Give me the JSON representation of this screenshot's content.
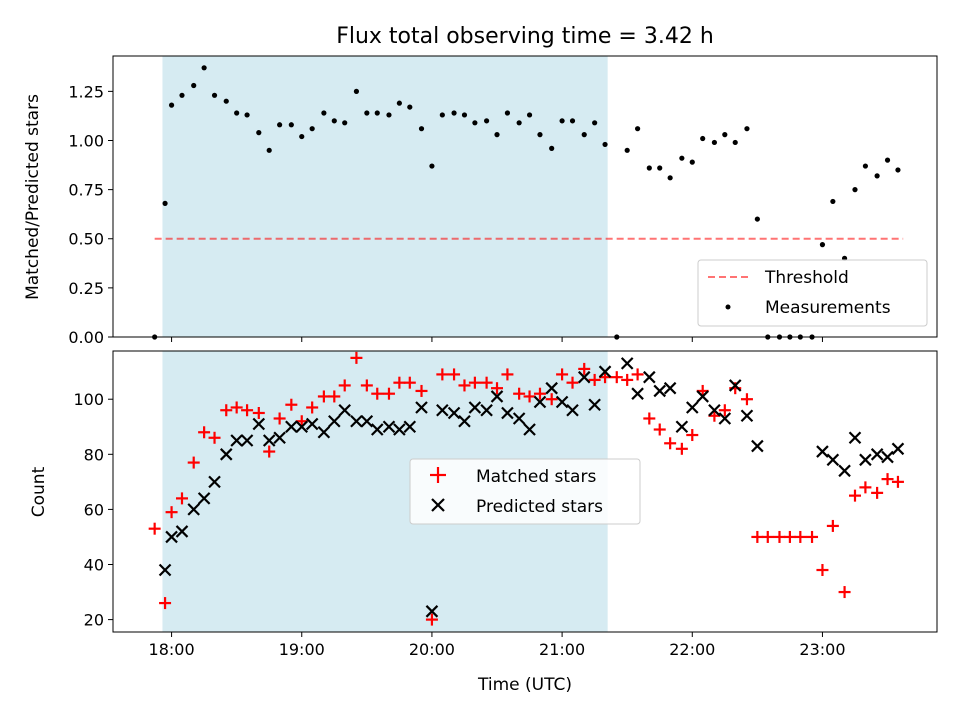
{
  "chart_data": {
    "title": "Flux total observing time = 3.42 h",
    "xlabel": "Time (UTC)",
    "xlim": [
      17.55,
      23.88
    ],
    "xticks": [
      18,
      19,
      20,
      21,
      22,
      23
    ],
    "xtick_labels": [
      "18:00",
      "19:00",
      "20:00",
      "21:00",
      "22:00",
      "23:00"
    ],
    "shaded_region": {
      "x_start": 17.93,
      "x_end": 21.35,
      "color": "#add8e6"
    },
    "panels": [
      {
        "type": "scatter",
        "ylabel": "Matched/Predicted stars",
        "ylim": [
          0.0,
          1.43
        ],
        "yticks": [
          0.0,
          0.25,
          0.5,
          0.75,
          1.0,
          1.25
        ],
        "ytick_labels": [
          "0.00",
          "0.25",
          "0.50",
          "0.75",
          "1.00",
          "1.25"
        ],
        "legend_position": "lower-right",
        "threshold": {
          "name": "Threshold",
          "y": 0.5,
          "x_range": [
            17.87,
            23.62
          ],
          "color": "#ff0000",
          "style": "dashed"
        },
        "measurements": {
          "name": "Measurements",
          "color": "#000000",
          "x": [
            17.87,
            17.95,
            18.0,
            18.08,
            18.17,
            18.25,
            18.33,
            18.42,
            18.5,
            18.58,
            18.67,
            18.75,
            18.83,
            18.92,
            19.0,
            19.08,
            19.17,
            19.25,
            19.33,
            19.42,
            19.5,
            19.58,
            19.67,
            19.75,
            19.83,
            19.92,
            20.0,
            20.08,
            20.17,
            20.25,
            20.33,
            20.42,
            20.5,
            20.58,
            20.67,
            20.75,
            20.83,
            20.92,
            21.0,
            21.08,
            21.17,
            21.25,
            21.33,
            21.42,
            21.5,
            21.58,
            21.67,
            21.75,
            21.83,
            21.92,
            22.0,
            22.08,
            22.17,
            22.25,
            22.33,
            22.42,
            22.5,
            22.58,
            22.67,
            22.75,
            22.83,
            22.92,
            23.0,
            23.08,
            23.17,
            23.25,
            23.33,
            23.42,
            23.5,
            23.58
          ],
          "y": [
            0.0,
            0.68,
            1.18,
            1.23,
            1.28,
            1.37,
            1.23,
            1.2,
            1.14,
            1.13,
            1.04,
            0.95,
            1.08,
            1.08,
            1.02,
            1.06,
            1.14,
            1.1,
            1.09,
            1.25,
            1.14,
            1.14,
            1.13,
            1.19,
            1.17,
            1.06,
            0.87,
            1.13,
            1.14,
            1.13,
            1.09,
            1.1,
            1.03,
            1.14,
            1.09,
            1.13,
            1.03,
            0.96,
            1.1,
            1.1,
            1.03,
            1.09,
            0.98,
            0.0,
            0.95,
            1.06,
            0.86,
            0.86,
            0.81,
            0.91,
            0.89,
            1.01,
            0.99,
            1.03,
            0.99,
            1.06,
            0.6,
            0.0,
            0.0,
            0.0,
            0.0,
            0.0,
            0.47,
            0.69,
            0.4,
            0.75,
            0.87,
            0.82,
            0.9,
            0.85
          ]
        }
      },
      {
        "type": "scatter",
        "ylabel": "Count",
        "ylim": [
          15.5,
          117.5
        ],
        "yticks": [
          20,
          40,
          60,
          80,
          100
        ],
        "ytick_labels": [
          "20",
          "40",
          "60",
          "80",
          "100"
        ],
        "legend_position": "center",
        "series": [
          {
            "name": "Matched stars",
            "marker": "plus",
            "color": "#ff0000",
            "x": [
              17.87,
              17.95,
              18.0,
              18.08,
              18.17,
              18.25,
              18.33,
              18.42,
              18.5,
              18.58,
              18.67,
              18.75,
              18.83,
              18.92,
              19.0,
              19.08,
              19.17,
              19.25,
              19.33,
              19.42,
              19.5,
              19.58,
              19.67,
              19.75,
              19.83,
              19.92,
              20.0,
              20.08,
              20.17,
              20.25,
              20.33,
              20.42,
              20.5,
              20.58,
              20.67,
              20.75,
              20.83,
              20.92,
              21.0,
              21.08,
              21.17,
              21.25,
              21.33,
              21.42,
              21.5,
              21.58,
              21.67,
              21.75,
              21.83,
              21.92,
              22.0,
              22.08,
              22.17,
              22.25,
              22.33,
              22.42,
              22.5,
              22.58,
              22.67,
              22.75,
              22.83,
              22.92,
              23.0,
              23.08,
              23.17,
              23.25,
              23.33,
              23.42,
              23.5,
              23.58
            ],
            "y": [
              53,
              26,
              59,
              64,
              77,
              88,
              86,
              96,
              97,
              96,
              95,
              81,
              93,
              98,
              92,
              97,
              101,
              101,
              105,
              115,
              105,
              102,
              102,
              106,
              106,
              103,
              20,
              109,
              109,
              105,
              106,
              106,
              104,
              109,
              102,
              101,
              102,
              100,
              109,
              106,
              111,
              107,
              108,
              108,
              107,
              109,
              93,
              89,
              84,
              82,
              87,
              103,
              94,
              96,
              104,
              100,
              50,
              50,
              50,
              50,
              50,
              50,
              38,
              54,
              30,
              65,
              68,
              66,
              71,
              70
            ]
          },
          {
            "name": "Predicted stars",
            "marker": "x",
            "color": "#000000",
            "x": [
              17.95,
              18.0,
              18.08,
              18.17,
              18.25,
              18.33,
              18.42,
              18.5,
              18.58,
              18.67,
              18.75,
              18.83,
              18.92,
              19.0,
              19.08,
              19.17,
              19.25,
              19.33,
              19.42,
              19.5,
              19.58,
              19.67,
              19.75,
              19.83,
              19.92,
              20.0,
              20.08,
              20.17,
              20.25,
              20.33,
              20.42,
              20.5,
              20.58,
              20.67,
              20.75,
              20.83,
              20.92,
              21.0,
              21.08,
              21.17,
              21.25,
              21.33,
              21.5,
              21.58,
              21.67,
              21.75,
              21.83,
              21.92,
              22.0,
              22.08,
              22.17,
              22.25,
              22.33,
              22.42,
              22.5,
              23.0,
              23.08,
              23.17,
              23.25,
              23.33,
              23.42,
              23.5,
              23.58
            ],
            "y": [
              38,
              50,
              52,
              60,
              64,
              70,
              80,
              85,
              85,
              91,
              85,
              86,
              90,
              90,
              91,
              88,
              92,
              96,
              92,
              92,
              89,
              90,
              89,
              90,
              97,
              23,
              96,
              95,
              92,
              97,
              96,
              101,
              95,
              93,
              89,
              99,
              104,
              99,
              96,
              108,
              98,
              110,
              113,
              102,
              108,
              103,
              104,
              90,
              97,
              101,
              96,
              93,
              105,
              94,
              83,
              81,
              78,
              74,
              86,
              78,
              80,
              79,
              82
            ]
          }
        ]
      }
    ]
  }
}
